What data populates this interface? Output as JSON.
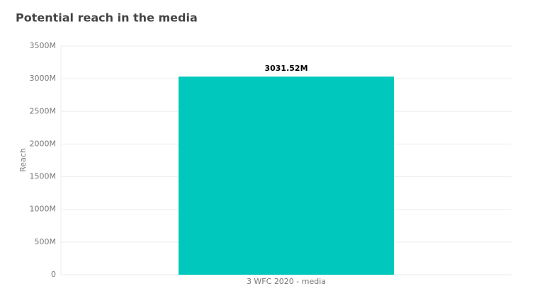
{
  "chart_data": {
    "type": "bar",
    "title": "Potential reach in the media",
    "ylabel": "Reach",
    "categories": [
      "3 WFC 2020 - media"
    ],
    "values": [
      3031.52
    ],
    "value_labels": [
      "3031.52M"
    ],
    "color": "#00c8bd",
    "ylim": [
      0,
      3500
    ],
    "yticks": [
      0,
      {
        "value": 500,
        "label": "500M"
      },
      {
        "value": 1000,
        "label": "1000M"
      },
      {
        "value": 1500,
        "label": "1500M"
      },
      {
        "value": 2000,
        "label": "2000M"
      },
      {
        "value": 2500,
        "label": "2500M"
      },
      {
        "value": 3000,
        "label": "3000M"
      },
      {
        "value": 3500,
        "label": "3500M"
      }
    ],
    "grid": true
  }
}
